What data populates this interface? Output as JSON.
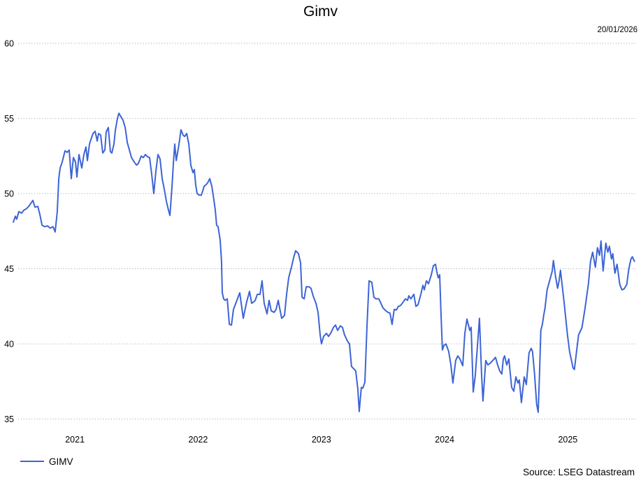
{
  "header": {
    "title": "Gimv",
    "date_label": "20/01/2026"
  },
  "legend": {
    "series_label": "GIMV"
  },
  "footer": {
    "source": "Source: LSEG Datastream"
  },
  "colors": {
    "line": "#3d64d6",
    "grid": "#9e9e9e",
    "text": "#000000",
    "background": "#ffffff"
  },
  "chart_data": {
    "type": "line",
    "title": "Gimv",
    "date_annotation": "20/01/2026",
    "source": "Source: LSEG Datastream",
    "legend_position": "bottom-left",
    "grid": "horizontal-dotted",
    "xlabel": "",
    "ylabel": "",
    "x_range": [
      2021.0,
      2026.04
    ],
    "ylim": [
      35,
      60
    ],
    "y_ticks": [
      60,
      55,
      50,
      45,
      40,
      35
    ],
    "x_ticks": [
      2021,
      2022,
      2023,
      2024,
      2025
    ],
    "series": [
      {
        "name": "GIMV",
        "color": "#3d64d6",
        "points": [
          [
            2021.0,
            48.1
          ],
          [
            2021.017,
            48.5
          ],
          [
            2021.028,
            48.3
          ],
          [
            2021.045,
            48.8
          ],
          [
            2021.068,
            48.7
          ],
          [
            2021.085,
            48.9
          ],
          [
            2021.108,
            49.0
          ],
          [
            2021.13,
            49.2
          ],
          [
            2021.159,
            49.55
          ],
          [
            2021.176,
            49.1
          ],
          [
            2021.199,
            49.15
          ],
          [
            2021.216,
            48.6
          ],
          [
            2021.233,
            47.9
          ],
          [
            2021.255,
            47.8
          ],
          [
            2021.278,
            47.85
          ],
          [
            2021.301,
            47.7
          ],
          [
            2021.323,
            47.8
          ],
          [
            2021.34,
            47.45
          ],
          [
            2021.357,
            48.8
          ],
          [
            2021.369,
            51.0
          ],
          [
            2021.38,
            51.7
          ],
          [
            2021.397,
            52.1
          ],
          [
            2021.42,
            52.85
          ],
          [
            2021.437,
            52.75
          ],
          [
            2021.454,
            52.9
          ],
          [
            2021.471,
            51.0
          ],
          [
            2021.488,
            52.4
          ],
          [
            2021.505,
            52.1
          ],
          [
            2021.516,
            51.1
          ],
          [
            2021.533,
            52.6
          ],
          [
            2021.556,
            51.7
          ],
          [
            2021.573,
            52.6
          ],
          [
            2021.59,
            53.1
          ],
          [
            2021.601,
            52.2
          ],
          [
            2021.618,
            53.3
          ],
          [
            2021.63,
            53.6
          ],
          [
            2021.647,
            54.0
          ],
          [
            2021.664,
            54.15
          ],
          [
            2021.681,
            53.5
          ],
          [
            2021.692,
            54.0
          ],
          [
            2021.709,
            53.9
          ],
          [
            2021.726,
            52.7
          ],
          [
            2021.743,
            52.9
          ],
          [
            2021.754,
            54.1
          ],
          [
            2021.771,
            54.4
          ],
          [
            2021.788,
            52.8
          ],
          [
            2021.8,
            52.7
          ],
          [
            2021.817,
            53.3
          ],
          [
            2021.828,
            54.2
          ],
          [
            2021.845,
            55.0
          ],
          [
            2021.857,
            55.35
          ],
          [
            2021.874,
            55.1
          ],
          [
            2021.89,
            54.9
          ],
          [
            2021.908,
            54.4
          ],
          [
            2021.925,
            53.4
          ],
          [
            2021.942,
            52.9
          ],
          [
            2021.959,
            52.4
          ],
          [
            2021.981,
            52.1
          ],
          [
            2022.0,
            51.9
          ],
          [
            2022.015,
            52.0
          ],
          [
            2022.038,
            52.5
          ],
          [
            2022.055,
            52.4
          ],
          [
            2022.072,
            52.6
          ],
          [
            2022.089,
            52.45
          ],
          [
            2022.106,
            52.4
          ],
          [
            2022.123,
            51.3
          ],
          [
            2022.14,
            50.0
          ],
          [
            2022.157,
            51.5
          ],
          [
            2022.174,
            52.6
          ],
          [
            2022.191,
            52.3
          ],
          [
            2022.208,
            51.0
          ],
          [
            2022.225,
            50.3
          ],
          [
            2022.242,
            49.5
          ],
          [
            2022.259,
            48.9
          ],
          [
            2022.271,
            48.55
          ],
          [
            2022.288,
            50.5
          ],
          [
            2022.299,
            52.0
          ],
          [
            2022.31,
            53.3
          ],
          [
            2022.322,
            52.2
          ],
          [
            2022.339,
            53.0
          ],
          [
            2022.35,
            53.6
          ],
          [
            2022.361,
            54.25
          ],
          [
            2022.378,
            53.9
          ],
          [
            2022.39,
            53.8
          ],
          [
            2022.407,
            54.0
          ],
          [
            2022.424,
            53.3
          ],
          [
            2022.441,
            51.9
          ],
          [
            2022.458,
            51.4
          ],
          [
            2022.469,
            51.6
          ],
          [
            2022.48,
            50.6
          ],
          [
            2022.492,
            50.0
          ],
          [
            2022.509,
            49.9
          ],
          [
            2022.526,
            49.9
          ],
          [
            2022.549,
            50.5
          ],
          [
            2022.566,
            50.6
          ],
          [
            2022.583,
            50.8
          ],
          [
            2022.594,
            51.0
          ],
          [
            2022.611,
            50.5
          ],
          [
            2022.622,
            49.9
          ],
          [
            2022.639,
            48.9
          ],
          [
            2022.65,
            47.9
          ],
          [
            2022.662,
            47.8
          ],
          [
            2022.679,
            46.9
          ],
          [
            2022.69,
            45.5
          ],
          [
            2022.696,
            43.4
          ],
          [
            2022.707,
            43.0
          ],
          [
            2022.719,
            42.9
          ],
          [
            2022.736,
            43.0
          ],
          [
            2022.753,
            41.3
          ],
          [
            2022.77,
            41.25
          ],
          [
            2022.787,
            42.3
          ],
          [
            2022.838,
            43.4
          ],
          [
            2022.866,
            41.7
          ],
          [
            2022.894,
            42.8
          ],
          [
            2022.917,
            43.5
          ],
          [
            2022.934,
            42.7
          ],
          [
            2022.951,
            42.8
          ],
          [
            2022.963,
            42.9
          ],
          [
            2022.98,
            43.3
          ],
          [
            2023.002,
            43.3
          ],
          [
            2023.019,
            44.2
          ],
          [
            2023.036,
            42.7
          ],
          [
            2023.059,
            42.0
          ],
          [
            2023.076,
            42.9
          ],
          [
            2023.093,
            42.2
          ],
          [
            2023.116,
            42.1
          ],
          [
            2023.133,
            42.3
          ],
          [
            2023.15,
            42.9
          ],
          [
            2023.161,
            42.4
          ],
          [
            2023.178,
            41.7
          ],
          [
            2023.201,
            41.9
          ],
          [
            2023.218,
            43.3
          ],
          [
            2023.235,
            44.4
          ],
          [
            2023.257,
            45.1
          ],
          [
            2023.274,
            45.7
          ],
          [
            2023.291,
            46.2
          ],
          [
            2023.314,
            46.0
          ],
          [
            2023.331,
            45.4
          ],
          [
            2023.343,
            43.1
          ],
          [
            2023.36,
            43.0
          ],
          [
            2023.377,
            43.8
          ],
          [
            2023.399,
            43.8
          ],
          [
            2023.416,
            43.7
          ],
          [
            2023.433,
            43.2
          ],
          [
            2023.456,
            42.7
          ],
          [
            2023.473,
            42.1
          ],
          [
            2023.49,
            40.6
          ],
          [
            2023.501,
            40.0
          ],
          [
            2023.518,
            40.5
          ],
          [
            2023.541,
            40.7
          ],
          [
            2023.558,
            40.5
          ],
          [
            2023.575,
            40.7
          ],
          [
            2023.598,
            41.1
          ],
          [
            2023.615,
            41.25
          ],
          [
            2023.632,
            40.9
          ],
          [
            2023.654,
            41.2
          ],
          [
            2023.671,
            41.1
          ],
          [
            2023.688,
            40.6
          ],
          [
            2023.711,
            40.2
          ],
          [
            2023.728,
            40.0
          ],
          [
            2023.745,
            38.5
          ],
          [
            2023.768,
            38.3
          ],
          [
            2023.779,
            38.2
          ],
          [
            2023.796,
            37.0
          ],
          [
            2023.807,
            35.5
          ],
          [
            2023.824,
            37.1
          ],
          [
            2023.836,
            37.05
          ],
          [
            2023.853,
            37.45
          ],
          [
            2023.87,
            41.2
          ],
          [
            2023.887,
            44.2
          ],
          [
            2023.909,
            44.1
          ],
          [
            2023.926,
            43.1
          ],
          [
            2023.943,
            43.0
          ],
          [
            2023.966,
            43.0
          ],
          [
            2023.983,
            42.7
          ],
          [
            2024.0,
            42.4
          ],
          [
            2024.023,
            42.2
          ],
          [
            2024.04,
            42.1
          ],
          [
            2024.057,
            42.05
          ],
          [
            2024.074,
            41.3
          ],
          [
            2024.091,
            42.3
          ],
          [
            2024.108,
            42.25
          ],
          [
            2024.125,
            42.5
          ],
          [
            2024.142,
            42.55
          ],
          [
            2024.165,
            42.8
          ],
          [
            2024.182,
            43.0
          ],
          [
            2024.199,
            42.9
          ],
          [
            2024.21,
            43.2
          ],
          [
            2024.227,
            43.0
          ],
          [
            2024.25,
            43.3
          ],
          [
            2024.267,
            42.5
          ],
          [
            2024.284,
            42.6
          ],
          [
            2024.307,
            43.3
          ],
          [
            2024.324,
            43.9
          ],
          [
            2024.335,
            43.6
          ],
          [
            2024.352,
            44.2
          ],
          [
            2024.369,
            44.0
          ],
          [
            2024.392,
            44.6
          ],
          [
            2024.409,
            45.2
          ],
          [
            2024.426,
            45.3
          ],
          [
            2024.437,
            44.8
          ],
          [
            2024.448,
            44.4
          ],
          [
            2024.46,
            44.6
          ],
          [
            2024.471,
            42.0
          ],
          [
            2024.482,
            39.6
          ],
          [
            2024.494,
            39.9
          ],
          [
            2024.511,
            40.0
          ],
          [
            2024.533,
            39.5
          ],
          [
            2024.55,
            38.65
          ],
          [
            2024.567,
            37.4
          ],
          [
            2024.59,
            38.9
          ],
          [
            2024.607,
            39.2
          ],
          [
            2024.624,
            39.0
          ],
          [
            2024.647,
            38.55
          ],
          [
            2024.664,
            40.7
          ],
          [
            2024.681,
            41.65
          ],
          [
            2024.704,
            40.9
          ],
          [
            2024.715,
            41.1
          ],
          [
            2024.732,
            36.8
          ],
          [
            2024.749,
            37.9
          ],
          [
            2024.766,
            39.8
          ],
          [
            2024.783,
            41.7
          ],
          [
            2024.8,
            38.0
          ],
          [
            2024.811,
            36.2
          ],
          [
            2024.834,
            38.9
          ],
          [
            2024.851,
            38.6
          ],
          [
            2024.868,
            38.7
          ],
          [
            2024.891,
            38.9
          ],
          [
            2024.913,
            39.1
          ],
          [
            2024.93,
            38.6
          ],
          [
            2024.947,
            38.2
          ],
          [
            2024.964,
            38.0
          ],
          [
            2024.976,
            39.0
          ],
          [
            2024.987,
            39.2
          ],
          [
            2025.004,
            38.6
          ],
          [
            2025.021,
            39.0
          ],
          [
            2025.044,
            37.1
          ],
          [
            2025.061,
            36.85
          ],
          [
            2025.078,
            37.8
          ],
          [
            2025.095,
            37.4
          ],
          [
            2025.106,
            37.6
          ],
          [
            2025.123,
            36.1
          ],
          [
            2025.146,
            37.8
          ],
          [
            2025.163,
            37.3
          ],
          [
            2025.185,
            39.4
          ],
          [
            2025.202,
            39.7
          ],
          [
            2025.213,
            39.5
          ],
          [
            2025.23,
            38.0
          ],
          [
            2025.247,
            36.0
          ],
          [
            2025.259,
            35.45
          ],
          [
            2025.27,
            38.0
          ],
          [
            2025.281,
            40.9
          ],
          [
            2025.293,
            41.3
          ],
          [
            2025.304,
            41.9
          ],
          [
            2025.315,
            42.4
          ],
          [
            2025.332,
            43.6
          ],
          [
            2025.355,
            44.3
          ],
          [
            2025.372,
            44.8
          ],
          [
            2025.383,
            45.55
          ],
          [
            2025.4,
            44.5
          ],
          [
            2025.417,
            43.7
          ],
          [
            2025.429,
            44.2
          ],
          [
            2025.44,
            44.9
          ],
          [
            2025.468,
            42.9
          ],
          [
            2025.497,
            40.6
          ],
          [
            2025.514,
            39.5
          ],
          [
            2025.542,
            38.4
          ],
          [
            2025.553,
            38.3
          ],
          [
            2025.587,
            40.6
          ],
          [
            2025.604,
            40.9
          ],
          [
            2025.615,
            41.1
          ],
          [
            2025.638,
            42.3
          ],
          [
            2025.65,
            43.0
          ],
          [
            2025.667,
            44.0
          ],
          [
            2025.684,
            45.5
          ],
          [
            2025.701,
            46.1
          ],
          [
            2025.723,
            45.1
          ],
          [
            2025.74,
            46.4
          ],
          [
            2025.757,
            45.9
          ],
          [
            2025.769,
            46.85
          ],
          [
            2025.786,
            44.85
          ],
          [
            2025.808,
            46.7
          ],
          [
            2025.825,
            46.1
          ],
          [
            2025.837,
            46.5
          ],
          [
            2025.854,
            45.65
          ],
          [
            2025.865,
            46.0
          ],
          [
            2025.882,
            44.7
          ],
          [
            2025.899,
            45.3
          ],
          [
            2025.922,
            43.95
          ],
          [
            2025.939,
            43.6
          ],
          [
            2025.956,
            43.65
          ],
          [
            2025.978,
            43.95
          ],
          [
            2025.995,
            45.0
          ],
          [
            2026.012,
            45.65
          ],
          [
            2026.023,
            45.8
          ],
          [
            2026.04,
            45.5
          ]
        ]
      }
    ]
  }
}
